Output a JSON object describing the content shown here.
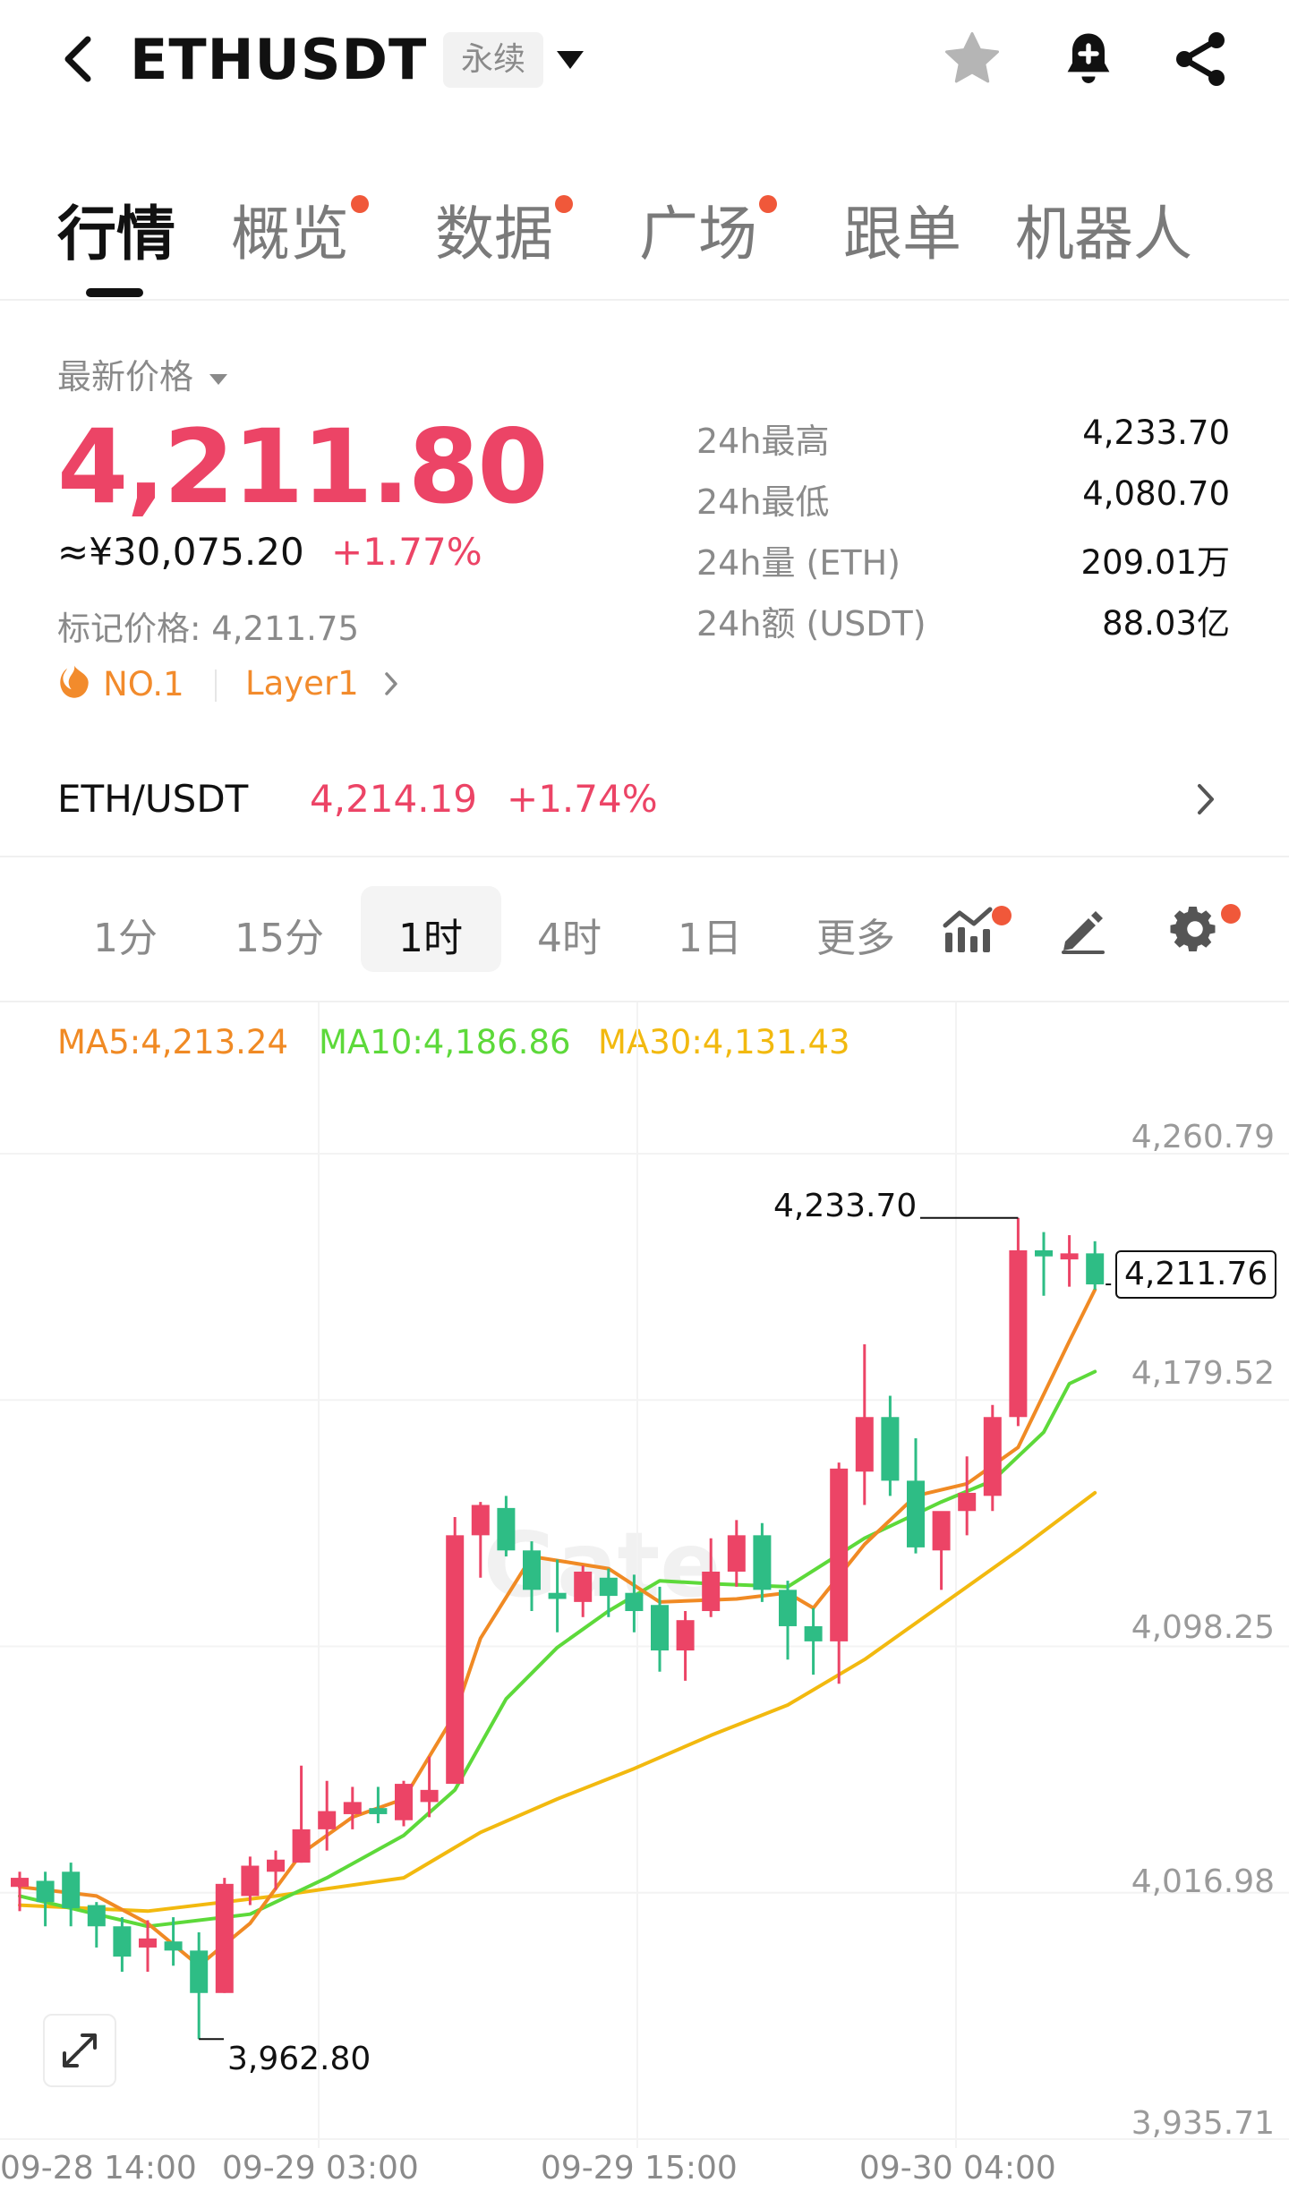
{
  "header": {
    "symbol": "ETHUSDT",
    "contract_type": "永续",
    "icons": [
      "back-arrow-icon",
      "chevron-down-icon",
      "star-icon",
      "bell-plus-icon",
      "share-icon"
    ]
  },
  "tabs": [
    {
      "label": "行情",
      "active": true,
      "dot": false
    },
    {
      "label": "概览",
      "active": false,
      "dot": true
    },
    {
      "label": "数据",
      "active": false,
      "dot": true
    },
    {
      "label": "广场",
      "active": false,
      "dot": true
    },
    {
      "label": "跟单",
      "active": false,
      "dot": false
    },
    {
      "label": "机器人",
      "active": false,
      "dot": false
    }
  ],
  "price": {
    "label": "最新价格",
    "last": "4,211.80",
    "cny": "≈¥30,075.20",
    "change": "+1.77%",
    "mark_label": "标记价格: 4,211.75",
    "rank": "NO.1",
    "category": "Layer1"
  },
  "stats": [
    {
      "label": "24h最高",
      "value": "4,233.70"
    },
    {
      "label": "24h最低",
      "value": "4,080.70"
    },
    {
      "label": "24h量 (ETH)",
      "value": "209.01万"
    },
    {
      "label": "24h额 (USDT)",
      "value": "88.03亿"
    }
  ],
  "spot": {
    "pair": "ETH/USDT",
    "price": "4,214.19",
    "change": "+1.74%"
  },
  "intervals": [
    {
      "label": "1分",
      "active": false
    },
    {
      "label": "15分",
      "active": false
    },
    {
      "label": "1时",
      "active": true
    },
    {
      "label": "4时",
      "active": false
    },
    {
      "label": "1日",
      "active": false
    },
    {
      "label": "更多",
      "active": false
    }
  ],
  "colors": {
    "up": "#ec4466",
    "down": "#2ebd85",
    "ma5": "#f08a24",
    "ma10": "#5dd93a",
    "ma30": "#f2b90f",
    "dot": "#f0583a"
  },
  "ma": {
    "ma5": "MA5:4,213.24",
    "ma10": "MA10:4,186.86",
    "ma30": "MA30:4,131.43"
  },
  "chart_data": {
    "type": "candlestick",
    "y_ticks": [
      "4,260.79",
      "4,179.52",
      "4,098.25",
      "4,016.98",
      "3,935.71"
    ],
    "y_tick_values": [
      4260.79,
      4179.52,
      4098.25,
      4016.98,
      3935.71
    ],
    "x_ticks": [
      "09-28 14:00",
      "09-29 03:00",
      "09-29 15:00",
      "09-30 04:00"
    ],
    "high_label": "4,233.70",
    "low_label": "3,962.80",
    "current_label": "4,211.76",
    "candles": [
      {
        "o": 4013,
        "h": 4018,
        "l": 4005,
        "c": 4016
      },
      {
        "o": 4015,
        "h": 4018,
        "l": 4000,
        "c": 4008
      },
      {
        "o": 4018,
        "h": 4021,
        "l": 4000,
        "c": 4006
      },
      {
        "o": 4007,
        "h": 4008,
        "l": 3993,
        "c": 4000
      },
      {
        "o": 4000,
        "h": 4003,
        "l": 3985,
        "c": 3990
      },
      {
        "o": 3993,
        "h": 4002,
        "l": 3985,
        "c": 3996
      },
      {
        "o": 3995,
        "h": 4003,
        "l": 3987,
        "c": 3992
      },
      {
        "o": 3992,
        "h": 3998,
        "l": 3962.8,
        "c": 3978
      },
      {
        "o": 3978,
        "h": 4016,
        "l": 3978,
        "c": 4014
      },
      {
        "o": 4010,
        "h": 4023,
        "l": 4007,
        "c": 4020
      },
      {
        "o": 4018,
        "h": 4025,
        "l": 4012,
        "c": 4022
      },
      {
        "o": 4021,
        "h": 4053,
        "l": 4021,
        "c": 4032
      },
      {
        "o": 4032,
        "h": 4048,
        "l": 4025,
        "c": 4038
      },
      {
        "o": 4037,
        "h": 4046,
        "l": 4032,
        "c": 4041
      },
      {
        "o": 4039,
        "h": 4046,
        "l": 4034,
        "c": 4037
      },
      {
        "o": 4035,
        "h": 4048,
        "l": 4033,
        "c": 4047
      },
      {
        "o": 4041,
        "h": 4056,
        "l": 4036,
        "c": 4045
      },
      {
        "o": 4047,
        "h": 4135,
        "l": 4047,
        "c": 4129
      },
      {
        "o": 4129,
        "h": 4140,
        "l": 4115,
        "c": 4139
      },
      {
        "o": 4138,
        "h": 4142,
        "l": 4122,
        "c": 4124
      },
      {
        "o": 4124,
        "h": 4127,
        "l": 4104,
        "c": 4111
      },
      {
        "o": 4110,
        "h": 4121,
        "l": 4097,
        "c": 4108
      },
      {
        "o": 4107,
        "h": 4119,
        "l": 4102,
        "c": 4117
      },
      {
        "o": 4115,
        "h": 4118,
        "l": 4102,
        "c": 4109
      },
      {
        "o": 4110,
        "h": 4116,
        "l": 4097,
        "c": 4104
      },
      {
        "o": 4106,
        "h": 4112,
        "l": 4084,
        "c": 4091
      },
      {
        "o": 4091,
        "h": 4104,
        "l": 4081,
        "c": 4101
      },
      {
        "o": 4104,
        "h": 4128,
        "l": 4102,
        "c": 4117
      },
      {
        "o": 4117,
        "h": 4134,
        "l": 4112,
        "c": 4129
      },
      {
        "o": 4129,
        "h": 4133,
        "l": 4107,
        "c": 4111
      },
      {
        "o": 4111,
        "h": 4114,
        "l": 4088,
        "c": 4099
      },
      {
        "o": 4099,
        "h": 4105,
        "l": 4083,
        "c": 4094
      },
      {
        "o": 4094,
        "h": 4153,
        "l": 4080,
        "c": 4151
      },
      {
        "o": 4150,
        "h": 4192,
        "l": 4139,
        "c": 4168
      },
      {
        "o": 4168,
        "h": 4175,
        "l": 4142,
        "c": 4147
      },
      {
        "o": 4147,
        "h": 4161,
        "l": 4123,
        "c": 4125
      },
      {
        "o": 4124,
        "h": 4135,
        "l": 4111,
        "c": 4137
      },
      {
        "o": 4137,
        "h": 4155,
        "l": 4129,
        "c": 4143
      },
      {
        "o": 4142,
        "h": 4172,
        "l": 4137,
        "c": 4168
      },
      {
        "o": 4168,
        "h": 4233.7,
        "l": 4165,
        "c": 4223
      },
      {
        "o": 4223,
        "h": 4229,
        "l": 4208,
        "c": 4221
      },
      {
        "o": 4220,
        "h": 4228,
        "l": 4211,
        "c": 4222
      },
      {
        "o": 4222,
        "h": 4226,
        "l": 4210,
        "c": 4211.76
      }
    ],
    "ma5_line": [
      [
        0,
        4013
      ],
      [
        3,
        4010
      ],
      [
        5,
        4001
      ],
      [
        7,
        3987
      ],
      [
        9,
        4001
      ],
      [
        11,
        4024
      ],
      [
        13,
        4036
      ],
      [
        15,
        4042
      ],
      [
        17,
        4070
      ],
      [
        18,
        4095
      ],
      [
        20,
        4122
      ],
      [
        23,
        4118
      ],
      [
        25,
        4107
      ],
      [
        28,
        4108
      ],
      [
        30,
        4110
      ],
      [
        31,
        4105
      ],
      [
        33,
        4126
      ],
      [
        35,
        4142
      ],
      [
        37,
        4146
      ],
      [
        39,
        4158
      ],
      [
        41,
        4193
      ],
      [
        42,
        4210
      ]
    ],
    "ma10_line": [
      [
        0,
        4010
      ],
      [
        5,
        4000
      ],
      [
        9,
        4004
      ],
      [
        12,
        4016
      ],
      [
        15,
        4030
      ],
      [
        17,
        4045
      ],
      [
        19,
        4075
      ],
      [
        21,
        4092
      ],
      [
        23,
        4104
      ],
      [
        25,
        4114
      ],
      [
        27,
        4113
      ],
      [
        30,
        4112
      ],
      [
        33,
        4128
      ],
      [
        36,
        4140
      ],
      [
        38,
        4147
      ],
      [
        40,
        4163
      ],
      [
        41,
        4179
      ],
      [
        42,
        4183
      ]
    ],
    "ma30_line": [
      [
        0,
        4007
      ],
      [
        5,
        4005
      ],
      [
        10,
        4010
      ],
      [
        15,
        4016
      ],
      [
        18,
        4031
      ],
      [
        21,
        4042
      ],
      [
        24,
        4052
      ],
      [
        27,
        4063
      ],
      [
        30,
        4073
      ],
      [
        33,
        4088
      ],
      [
        36,
        4106
      ],
      [
        39,
        4124
      ],
      [
        42,
        4143
      ]
    ]
  }
}
